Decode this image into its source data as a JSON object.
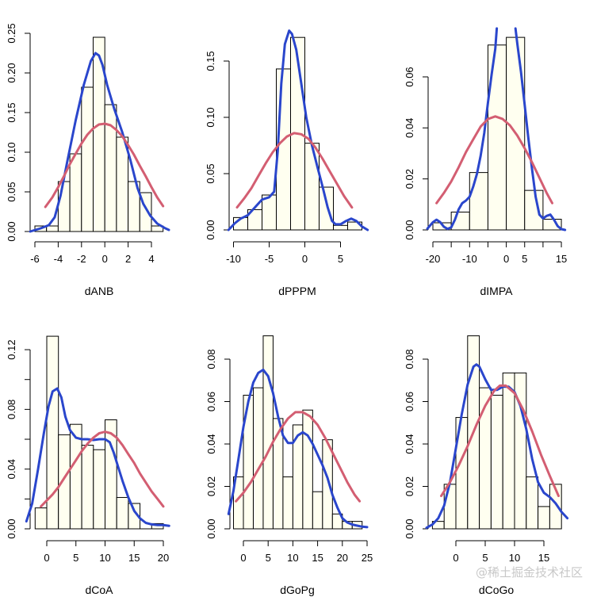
{
  "watermark": "@稀土掘金技术社区",
  "colors": {
    "bar_fill": "#FFFFF0",
    "bar_stroke": "#000000",
    "kde": "#2A46CC",
    "normal": "#D35E72"
  },
  "chart_data": [
    {
      "type": "bar",
      "subtype": "histogram-with-density",
      "xlabel": "dANB",
      "ylabel": "",
      "bins": [
        -6,
        -5,
        -4,
        -3,
        -2,
        -1,
        0,
        1,
        2,
        3,
        4,
        5
      ],
      "values": [
        0.007,
        0.007,
        0.063,
        0.098,
        0.182,
        0.245,
        0.16,
        0.119,
        0.063,
        0.049,
        0.007
      ],
      "xticks": [
        -6,
        -4,
        -2,
        0,
        2,
        4
      ],
      "yticks": [
        "0.00",
        "0.05",
        "0.10",
        "0.15",
        "0.20",
        "0.25"
      ],
      "ylim": [
        0,
        0.25
      ],
      "series": [
        {
          "name": "kernel density",
          "color": "blue",
          "x": [
            -6.4,
            -5.5,
            -4.8,
            -4.3,
            -3.8,
            -3.2,
            -2.5,
            -1.8,
            -1.2,
            -0.8,
            -0.5,
            -0.2,
            0.2,
            0.8,
            1.5,
            2.2,
            2.8,
            3.3,
            3.9,
            4.5,
            5.2,
            5.5
          ],
          "y": [
            0.0,
            0.004,
            0.008,
            0.018,
            0.045,
            0.09,
            0.14,
            0.185,
            0.215,
            0.225,
            0.222,
            0.21,
            0.185,
            0.155,
            0.125,
            0.09,
            0.055,
            0.035,
            0.02,
            0.01,
            0.004,
            0.002
          ]
        },
        {
          "name": "normal fit",
          "color": "red",
          "x": [
            -5.1,
            -4.5,
            -4,
            -3.5,
            -3,
            -2.5,
            -2,
            -1.5,
            -1,
            -0.5,
            0,
            0.5,
            1,
            1.5,
            2,
            2.5,
            3,
            3.5,
            4,
            4.5,
            5
          ],
          "y": [
            0.031,
            0.043,
            0.056,
            0.07,
            0.085,
            0.098,
            0.111,
            0.122,
            0.13,
            0.135,
            0.136,
            0.134,
            0.128,
            0.12,
            0.109,
            0.097,
            0.083,
            0.07,
            0.056,
            0.043,
            0.032
          ]
        }
      ]
    },
    {
      "type": "bar",
      "subtype": "histogram-with-density",
      "xlabel": "dPPPM",
      "ylabel": "",
      "bins": [
        -10,
        -8,
        -6,
        -4,
        -2,
        0,
        2,
        4,
        6,
        8
      ],
      "values": [
        0.011,
        0.018,
        0.031,
        0.143,
        0.171,
        0.077,
        0.038,
        0.004,
        0.007
      ],
      "xticks": [
        -10,
        -5,
        0,
        5
      ],
      "yticks": [
        "0.00",
        "0.05",
        "0.10",
        "0.15"
      ],
      "ylim": [
        0,
        0.15
      ],
      "series": [
        {
          "name": "kernel density",
          "color": "blue",
          "x": [
            -10.7,
            -9.8,
            -9,
            -8,
            -7,
            -6,
            -5,
            -4.3,
            -3.8,
            -3.3,
            -2.8,
            -2.2,
            -1.8,
            -1.2,
            -0.5,
            0.2,
            1,
            1.8,
            2.5,
            3.2,
            3.8,
            4.3,
            5,
            5.8,
            6.5,
            7.2,
            8,
            8.8
          ],
          "y": [
            0.0,
            0.006,
            0.01,
            0.013,
            0.02,
            0.027,
            0.029,
            0.034,
            0.07,
            0.13,
            0.165,
            0.177,
            0.174,
            0.16,
            0.13,
            0.1,
            0.075,
            0.055,
            0.038,
            0.02,
            0.008,
            0.005,
            0.005,
            0.008,
            0.01,
            0.008,
            0.003,
            0.0
          ]
        },
        {
          "name": "normal fit",
          "color": "red",
          "x": [
            -9.5,
            -8.5,
            -7.5,
            -6.5,
            -5.5,
            -4.5,
            -3.5,
            -2.5,
            -1.5,
            -0.5,
            0.5,
            1.5,
            2.5,
            3.5,
            4.5,
            5.5,
            6.6
          ],
          "y": [
            0.02,
            0.028,
            0.037,
            0.048,
            0.059,
            0.069,
            0.077,
            0.083,
            0.086,
            0.085,
            0.081,
            0.073,
            0.063,
            0.052,
            0.041,
            0.03,
            0.02
          ]
        }
      ]
    },
    {
      "type": "bar",
      "subtype": "histogram-with-density",
      "xlabel": "dIMPA",
      "ylabel": "",
      "bins": [
        -20,
        -15,
        -10,
        -5,
        0,
        5,
        10,
        15
      ],
      "values": [
        0.0028,
        0.007,
        0.0225,
        0.0725,
        0.0755,
        0.0155,
        0.0042
      ],
      "xticks": [
        -20,
        -15,
        -10,
        -5,
        0,
        5,
        10,
        15
      ],
      "xticklabels": [
        "-20",
        "",
        "-10",
        "",
        "0",
        "5",
        "",
        "15"
      ],
      "yticks": [
        "0.00",
        "0.02",
        "0.04",
        "0.06"
      ],
      "ylim": [
        0,
        0.06
      ],
      "series": [
        {
          "name": "kernel density",
          "color": "blue",
          "x": [
            -21.5,
            -20,
            -19,
            -18,
            -17,
            -16,
            -15,
            -14,
            -13,
            -12,
            -11,
            -10,
            -9,
            -8,
            -7,
            -6,
            -5,
            -4,
            -3,
            -2.6
          ],
          "y": [
            0.0005,
            0.003,
            0.004,
            0.003,
            0.0012,
            0.0004,
            0.001,
            0.004,
            0.008,
            0.0105,
            0.0115,
            0.013,
            0.017,
            0.022,
            0.029,
            0.038,
            0.05,
            0.061,
            0.071,
            0.079
          ]
        },
        {
          "name": "kernel density (right)",
          "color": "blue",
          "x": [
            2.5,
            3,
            4,
            5,
            6,
            7,
            8,
            9,
            10,
            11,
            12,
            13,
            14,
            15,
            16
          ],
          "y": [
            0.079,
            0.073,
            0.062,
            0.049,
            0.036,
            0.024,
            0.013,
            0.006,
            0.0045,
            0.0055,
            0.006,
            0.004,
            0.0015,
            0.0003,
            0.0
          ]
        },
        {
          "name": "normal fit",
          "color": "red",
          "x": [
            -19,
            -17,
            -15,
            -13,
            -11,
            -9,
            -7,
            -5,
            -3,
            -1,
            1,
            3,
            5,
            7,
            9,
            11,
            12.5
          ],
          "y": [
            0.0105,
            0.0145,
            0.019,
            0.0245,
            0.0305,
            0.0355,
            0.0405,
            0.0435,
            0.0445,
            0.0435,
            0.041,
            0.037,
            0.032,
            0.0265,
            0.0205,
            0.0145,
            0.0105
          ]
        }
      ]
    },
    {
      "type": "bar",
      "subtype": "histogram-with-density",
      "xlabel": "dCoA",
      "ylabel": "",
      "bins": [
        -2,
        0,
        2,
        4,
        6,
        8,
        10,
        12,
        14,
        16,
        18,
        20
      ],
      "values": [
        0.014,
        0.129,
        0.063,
        0.07,
        0.056,
        0.053,
        0.073,
        0.021,
        0.017,
        0.0,
        0.0035
      ],
      "xticks": [
        0,
        5,
        10,
        15,
        20
      ],
      "yticks": [
        "0.00",
        "",
        "0.04",
        "",
        "0.08",
        "",
        "0.12"
      ],
      "yticks_values": [
        0,
        0.02,
        0.04,
        0.06,
        0.08,
        0.1,
        0.12
      ],
      "ylim": [
        0,
        0.12
      ],
      "series": [
        {
          "name": "kernel density",
          "color": "blue",
          "x": [
            -3.5,
            -2.5,
            -1.5,
            -0.5,
            0.3,
            1,
            1.8,
            2.5,
            3.2,
            4,
            5,
            6,
            7,
            8,
            9,
            10,
            10.8,
            11.5,
            12.2,
            13,
            14,
            15,
            16,
            17,
            18,
            19,
            20,
            21
          ],
          "y": [
            0.005,
            0.017,
            0.04,
            0.064,
            0.082,
            0.092,
            0.094,
            0.088,
            0.075,
            0.066,
            0.061,
            0.06,
            0.06,
            0.0595,
            0.06,
            0.06,
            0.058,
            0.051,
            0.042,
            0.032,
            0.021,
            0.012,
            0.007,
            0.004,
            0.003,
            0.0025,
            0.0025,
            0.002
          ]
        },
        {
          "name": "normal fit",
          "color": "red",
          "x": [
            -1,
            0,
            1,
            2,
            3,
            4,
            5,
            6,
            7,
            8,
            9,
            10,
            11,
            12,
            13,
            14,
            15,
            16,
            17,
            18,
            19,
            20
          ],
          "y": [
            0.015,
            0.019,
            0.023,
            0.028,
            0.034,
            0.04,
            0.046,
            0.052,
            0.057,
            0.061,
            0.064,
            0.065,
            0.064,
            0.061,
            0.056,
            0.05,
            0.044,
            0.037,
            0.031,
            0.025,
            0.02,
            0.015
          ]
        }
      ]
    },
    {
      "type": "bar",
      "subtype": "histogram-with-density",
      "xlabel": "dGoPg",
      "ylabel": "",
      "bins": [
        -2,
        0,
        2,
        4,
        6,
        8,
        10,
        12,
        14,
        16,
        18,
        20,
        22,
        24
      ],
      "values": [
        0.0245,
        0.063,
        0.0665,
        0.091,
        0.052,
        0.0245,
        0.049,
        0.056,
        0.0175,
        0.042,
        0.007,
        0.0035,
        0.0035
      ],
      "xticks": [
        0,
        5,
        10,
        15,
        20,
        25
      ],
      "yticks": [
        "0.00",
        "0.02",
        "0.04",
        "0.06",
        "0.08"
      ],
      "ylim": [
        0,
        0.08
      ],
      "series": [
        {
          "name": "kernel density",
          "color": "blue",
          "x": [
            -3,
            -2,
            -1,
            0,
            1,
            2,
            3,
            4,
            5,
            6,
            7,
            8,
            9,
            10,
            11,
            12,
            13,
            14,
            15,
            16,
            17,
            18,
            19,
            20,
            21,
            22,
            23,
            24,
            25
          ],
          "y": [
            0.007,
            0.018,
            0.033,
            0.048,
            0.06,
            0.069,
            0.0735,
            0.075,
            0.072,
            0.064,
            0.053,
            0.044,
            0.0405,
            0.0405,
            0.044,
            0.0455,
            0.044,
            0.04,
            0.035,
            0.03,
            0.024,
            0.016,
            0.01,
            0.005,
            0.003,
            0.002,
            0.0015,
            0.001,
            0.0008
          ]
        },
        {
          "name": "normal fit",
          "color": "red",
          "x": [
            -1.5,
            0,
            1.5,
            3,
            4.5,
            6,
            7.5,
            9,
            10.5,
            12,
            13.5,
            15,
            16.5,
            18,
            19.5,
            21,
            22.5,
            23.5
          ],
          "y": [
            0.013,
            0.017,
            0.022,
            0.028,
            0.034,
            0.041,
            0.047,
            0.052,
            0.055,
            0.055,
            0.053,
            0.049,
            0.043,
            0.036,
            0.029,
            0.022,
            0.016,
            0.013
          ]
        }
      ]
    },
    {
      "type": "bar",
      "subtype": "histogram-with-density",
      "xlabel": "dCoGo",
      "ylabel": "",
      "bins": [
        -4,
        -2,
        0,
        2,
        4,
        6,
        8,
        10,
        12,
        14,
        16,
        18
      ],
      "values": [
        0.0035,
        0.021,
        0.0525,
        0.091,
        0.0665,
        0.063,
        0.0735,
        0.0735,
        0.0245,
        0.0105,
        0.021
      ],
      "xticks": [
        0,
        5,
        10,
        15
      ],
      "yticks": [
        "0.00",
        "0.02",
        "0.04",
        "0.06",
        "0.08"
      ],
      "ylim": [
        0,
        0.08
      ],
      "series": [
        {
          "name": "kernel density",
          "color": "blue",
          "x": [
            -5,
            -4,
            -3,
            -2,
            -1,
            0,
            1,
            2,
            3,
            3.5,
            4,
            5,
            6,
            7,
            8,
            9,
            10,
            11,
            12,
            13,
            14,
            15,
            16,
            17,
            18,
            19
          ],
          "y": [
            0.0005,
            0.002,
            0.005,
            0.011,
            0.022,
            0.038,
            0.054,
            0.068,
            0.0765,
            0.0775,
            0.0765,
            0.0705,
            0.0655,
            0.0655,
            0.067,
            0.067,
            0.0645,
            0.058,
            0.047,
            0.033,
            0.022,
            0.017,
            0.015,
            0.012,
            0.008,
            0.005
          ]
        },
        {
          "name": "normal fit",
          "color": "red",
          "x": [
            -2.5,
            -1,
            0.5,
            2,
            3.5,
            5,
            6.5,
            7.5,
            8.5,
            10,
            11.5,
            13,
            14.5,
            16,
            17.5
          ],
          "y": [
            0.0155,
            0.022,
            0.03,
            0.039,
            0.049,
            0.058,
            0.065,
            0.0675,
            0.0675,
            0.064,
            0.056,
            0.046,
            0.035,
            0.025,
            0.0155
          ]
        }
      ]
    }
  ]
}
